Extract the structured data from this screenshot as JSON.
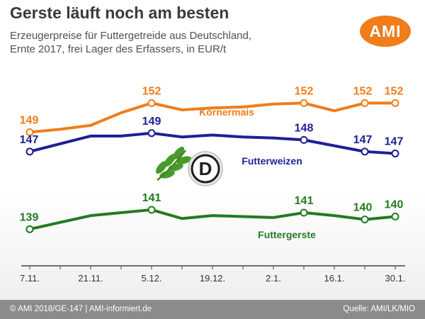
{
  "header": {
    "title": "Gerste läuft noch am besten",
    "subtitle_line1": "Erzeugerpreise für Futtergetreide aus Deutschland,",
    "subtitle_line2": "Ernte 2017, frei Lager des Erfassers, in EUR/t",
    "logo_text": "AMI"
  },
  "footer": {
    "copyright": "© AMI 2018/GE-147 | AMI-informiert.de",
    "source": "Quelle: AMI/LK/MIO"
  },
  "emblem": {
    "letter": "D"
  },
  "colors": {
    "koernermais": "#ef7d1a",
    "futterweizen": "#1f1f96",
    "futtergerste": "#237a23",
    "brand": "#ef7d1a"
  },
  "chart_data": {
    "type": "line",
    "title": "Gerste läuft noch am besten",
    "x": [
      "7.11.",
      "14.11.",
      "21.11.",
      "28.11.",
      "5.12.",
      "12.12.",
      "19.12.",
      "26.12.",
      "2.1.",
      "9.1.",
      "16.1.",
      "23.1.",
      "30.1."
    ],
    "x_tick_labels": [
      "7.11.",
      "21.11.",
      "5.12.",
      "19.12.",
      "2.1.",
      "16.1.",
      "30.1."
    ],
    "ylim": [
      138,
      154
    ],
    "grid": false,
    "legend": "inline labels",
    "series": [
      {
        "name": "Körnermais",
        "color": "#ef7d1a",
        "values": [
          149,
          149.3,
          149.7,
          151,
          152,
          151.3,
          151.5,
          151.6,
          151.9,
          152,
          151.2,
          152,
          152
        ],
        "labels": [
          {
            "index": 0,
            "text": "149"
          },
          {
            "index": 4,
            "text": "152"
          },
          {
            "index": 9,
            "text": "152"
          },
          {
            "index": 11,
            "text": "152"
          },
          {
            "index": 12,
            "text": "152"
          }
        ]
      },
      {
        "name": "Futterweizen",
        "color": "#1f1f96",
        "values": [
          147,
          147.8,
          148.6,
          148.6,
          148.9,
          148.5,
          148.7,
          148.5,
          148.4,
          148.2,
          147.6,
          147,
          146.8
        ],
        "labels": [
          {
            "index": 0,
            "text": "147"
          },
          {
            "index": 4,
            "text": "149"
          },
          {
            "index": 9,
            "text": "148"
          },
          {
            "index": 11,
            "text": "147"
          },
          {
            "index": 12,
            "text": "147"
          }
        ]
      },
      {
        "name": "Futtergerste",
        "color": "#237a23",
        "values": [
          139,
          139.7,
          140.4,
          140.7,
          141,
          140.1,
          140.4,
          140.3,
          140.2,
          140.7,
          140.4,
          140,
          140.3
        ],
        "labels": [
          {
            "index": 0,
            "text": "139"
          },
          {
            "index": 4,
            "text": "141"
          },
          {
            "index": 9,
            "text": "141"
          },
          {
            "index": 11,
            "text": "140"
          },
          {
            "index": 12,
            "text": "140"
          }
        ]
      }
    ]
  }
}
